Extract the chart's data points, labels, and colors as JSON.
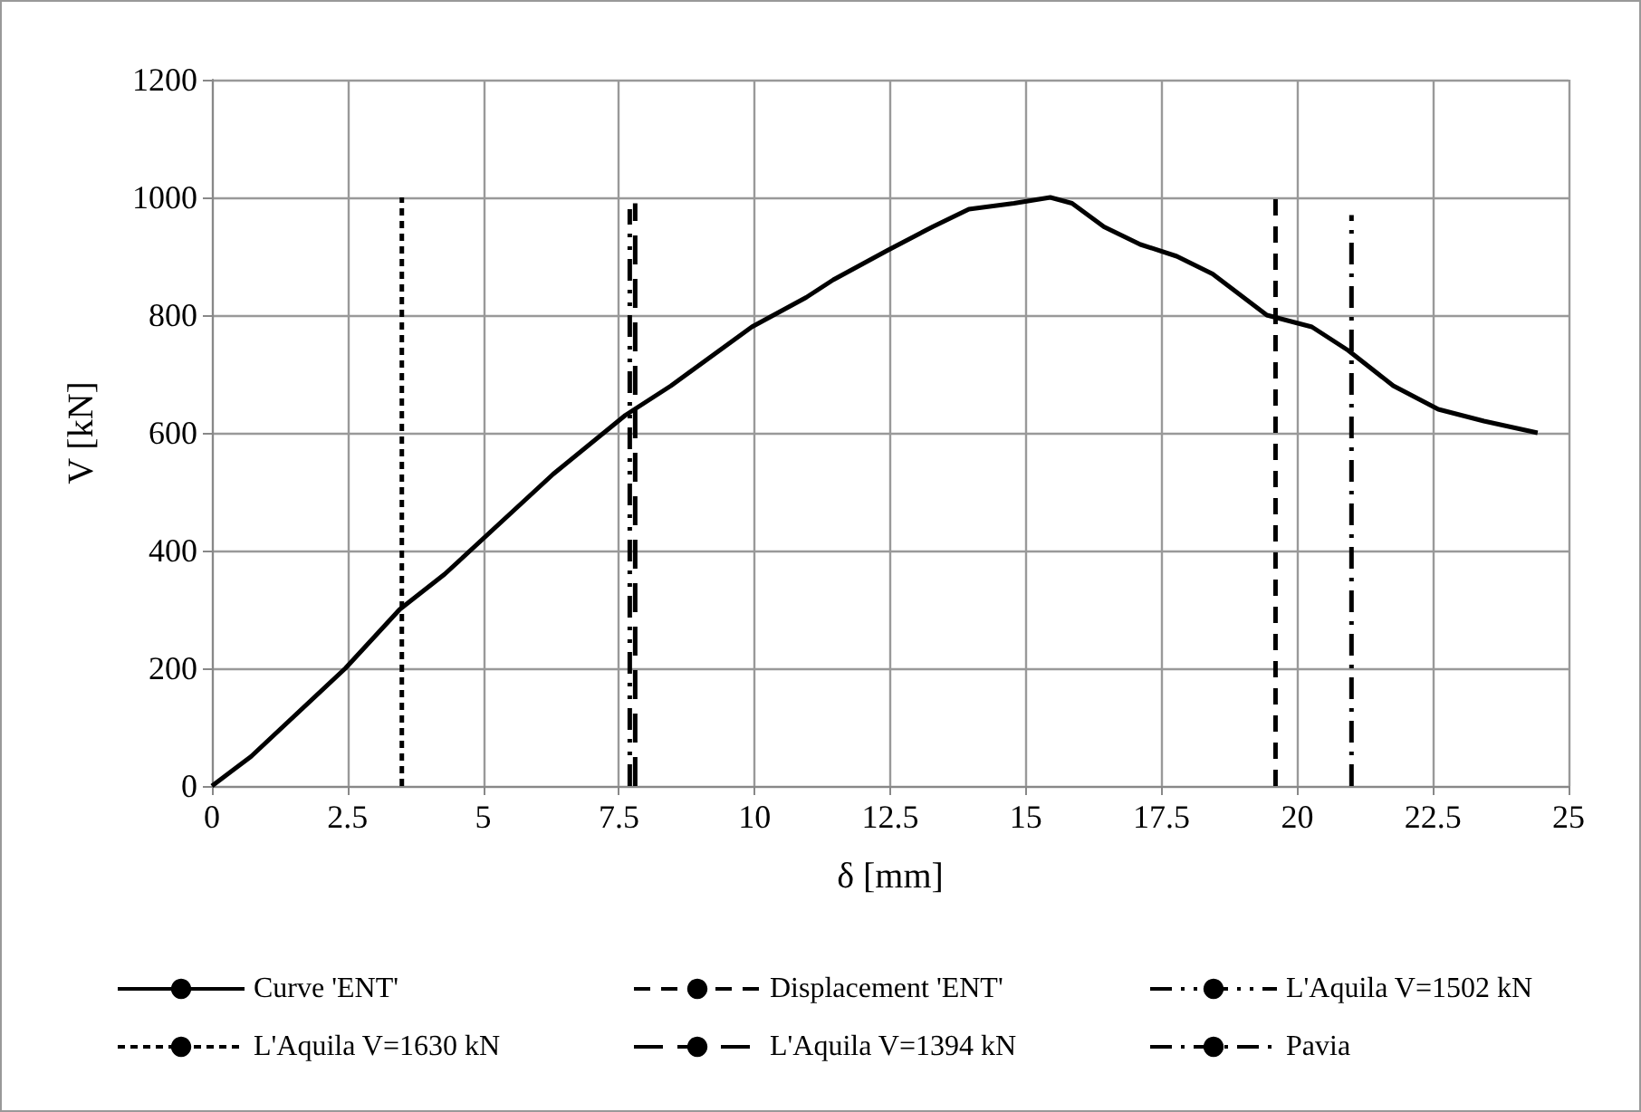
{
  "chart_data": {
    "type": "line",
    "xlabel": "δ [mm]",
    "ylabel": "V [kN]",
    "xlim": [
      0,
      25
    ],
    "xticks": [
      0,
      2.5,
      5,
      7.5,
      10,
      12.5,
      15,
      17.5,
      20,
      22.5,
      25
    ],
    "ylim": [
      0,
      1200
    ],
    "yticks": [
      0,
      200,
      400,
      600,
      800,
      1000,
      1200
    ],
    "grid": true,
    "legend": "bottom",
    "marker": "none",
    "series": [
      {
        "name": "Curve 'ENT'",
        "color": "#000000",
        "line_style": "solid",
        "x": [
          0,
          0.72,
          2.46,
          3.46,
          4.29,
          6.29,
          7.62,
          8.46,
          9.95,
          10.95,
          11.45,
          12.45,
          13.28,
          13.95,
          14.78,
          15.45,
          15.85,
          16.44,
          17.11,
          17.78,
          18.44,
          19.44,
          20.27,
          20.94,
          21.77,
          22.6,
          23.44,
          24.43
        ],
        "values": [
          0,
          50,
          200,
          300,
          360,
          530,
          630,
          680,
          780,
          830,
          860,
          910,
          950,
          980,
          990,
          1000,
          990,
          950,
          920,
          900,
          870,
          800,
          780,
          740,
          680,
          640,
          620,
          600
        ]
      },
      {
        "name": "Displacement 'ENT'",
        "color": "#000000",
        "line_style": "dashed",
        "x": [
          19.6,
          19.6
        ],
        "values": [
          0,
          1000
        ]
      },
      {
        "name": "L'Aquila V=1502 kN",
        "color": "#000000",
        "line_style": "dashdotdot",
        "x": [
          7.7,
          7.7
        ],
        "values": [
          0,
          980
        ]
      },
      {
        "name": "L'Aquila V=1630 kN",
        "color": "#000000",
        "line_style": "dotted",
        "x": [
          3.5,
          3.5
        ],
        "values": [
          0,
          1000
        ]
      },
      {
        "name": "L'Aquila V=1394 kN",
        "color": "#000000",
        "line_style": "longdash",
        "x": [
          7.8,
          7.8
        ],
        "values": [
          0,
          990
        ]
      },
      {
        "name": "Pavia",
        "color": "#000000",
        "line_style": "dashdot",
        "x": [
          21,
          21
        ],
        "values": [
          0,
          970
        ]
      }
    ]
  }
}
